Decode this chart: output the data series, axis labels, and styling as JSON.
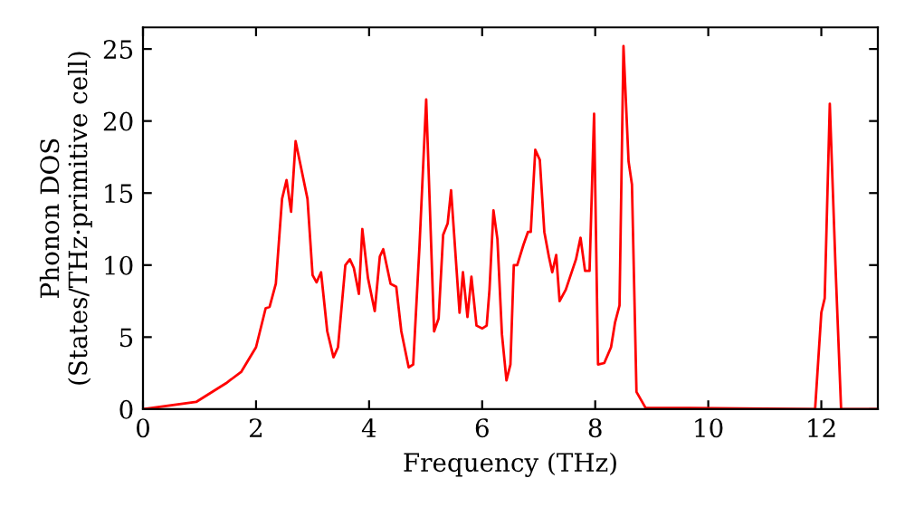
{
  "chart_data": {
    "type": "line",
    "xlabel": "Frequency (THz)",
    "ylabel": "Phonon DOS\n(States/THz·primitive cell)",
    "xlim": [
      0,
      13
    ],
    "ylim": [
      0,
      26.5
    ],
    "xticks": [
      0,
      2,
      4,
      6,
      8,
      10,
      12
    ],
    "yticks": [
      0,
      5,
      10,
      15,
      20,
      25
    ],
    "grid": false,
    "series": [
      {
        "color": "#ff0000",
        "x": [
          0,
          0.94,
          1.47,
          1.74,
          2.0,
          2.17,
          2.24,
          2.35,
          2.46,
          2.54,
          2.62,
          2.7,
          2.91,
          3.0,
          3.07,
          3.15,
          3.26,
          3.37,
          3.45,
          3.58,
          3.66,
          3.73,
          3.82,
          3.88,
          3.98,
          4.1,
          4.19,
          4.25,
          4.38,
          4.48,
          4.57,
          4.7,
          4.78,
          4.89,
          5.01,
          5.15,
          5.23,
          5.31,
          5.39,
          5.45,
          5.6,
          5.66,
          5.74,
          5.81,
          5.9,
          6.0,
          6.08,
          6.13,
          6.2,
          6.27,
          6.35,
          6.43,
          6.5,
          6.56,
          6.62,
          6.73,
          6.81,
          6.86,
          6.94,
          7.02,
          7.1,
          7.18,
          7.24,
          7.31,
          7.37,
          7.48,
          7.66,
          7.74,
          7.82,
          7.9,
          7.98,
          8.05,
          8.16,
          8.28,
          8.35,
          8.43,
          8.5,
          8.59,
          8.65,
          8.73,
          8.89,
          11.89,
          12.0,
          12.06,
          12.15,
          12.25,
          12.35,
          13
        ],
        "values": [
          0,
          0.5,
          1.8,
          2.6,
          4.3,
          7.0,
          7.1,
          8.7,
          14.6,
          15.9,
          13.7,
          18.6,
          14.6,
          9.3,
          8.8,
          9.5,
          5.4,
          3.6,
          4.3,
          10.0,
          10.4,
          9.8,
          8.0,
          12.5,
          9.1,
          6.8,
          10.6,
          11.1,
          8.7,
          8.5,
          5.4,
          2.9,
          3.1,
          11.2,
          21.5,
          5.4,
          6.3,
          12.1,
          12.9,
          15.2,
          6.7,
          9.5,
          6.4,
          9.2,
          5.8,
          5.6,
          5.8,
          8.3,
          13.8,
          11.8,
          5.2,
          2.0,
          3.1,
          10.0,
          10.0,
          11.4,
          12.3,
          12.3,
          18.0,
          17.3,
          12.3,
          10.6,
          9.5,
          10.7,
          7.5,
          8.3,
          10.4,
          11.9,
          9.6,
          9.6,
          20.5,
          3.1,
          3.2,
          4.3,
          6.0,
          7.2,
          25.2,
          17.2,
          15.6,
          1.2,
          0.1,
          0,
          6.7,
          7.7,
          21.2,
          10.0,
          0,
          0
        ]
      }
    ]
  }
}
